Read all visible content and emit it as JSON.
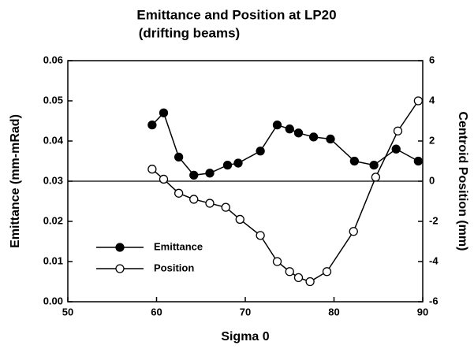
{
  "chart_data": {
    "type": "line",
    "title": "Emittance and Position at LP20",
    "subtitle": "(drifting beams)",
    "x_label": "Sigma 0",
    "y_label": "Emittance (mm-mRad)",
    "y2_label": "Centroid Position (mm)",
    "xlim": [
      50,
      90
    ],
    "xticks": [
      50,
      60,
      70,
      80,
      90
    ],
    "ylim": [
      0,
      0.06
    ],
    "yticks": [
      {
        "value": 0,
        "label": "0.00"
      },
      0.01,
      0.02,
      0.03,
      0.04,
      0.05,
      0.06
    ],
    "y2lim": [
      -6,
      6
    ],
    "y2ticks": [
      -6,
      -4,
      -2,
      0,
      2,
      4,
      6
    ],
    "legend": "lower left",
    "series": [
      {
        "name": "Emittance",
        "color": "#000000",
        "marker": "filled",
        "x": [
          59.5,
          60.8,
          62.5,
          64.2,
          66,
          68,
          69.2,
          71.7,
          73.6,
          75,
          76,
          77.7,
          79.6,
          82.3,
          84.5,
          87,
          89.5
        ],
        "values": [
          0.044,
          0.047,
          0.036,
          0.0315,
          0.032,
          0.034,
          0.0345,
          0.0375,
          0.044,
          0.043,
          0.042,
          0.041,
          0.0405,
          0.035,
          0.034,
          0.038,
          0.035
        ]
      },
      {
        "name": "Position",
        "color": "#000000",
        "marker": "hollow",
        "axis": "y2",
        "x": [
          59.5,
          60.8,
          62.5,
          64.2,
          66,
          67.8,
          69.4,
          71.7,
          73.6,
          75,
          76,
          77.3,
          79.2,
          82.2,
          84.7,
          87.2,
          89.5
        ],
        "values": [
          0.6,
          0.1,
          -0.6,
          -0.9,
          -1.1,
          -1.3,
          -1.9,
          -2.7,
          -4.0,
          -4.5,
          -4.8,
          -5.0,
          -4.5,
          -2.5,
          0.2,
          2.5,
          4.0
        ]
      }
    ]
  }
}
